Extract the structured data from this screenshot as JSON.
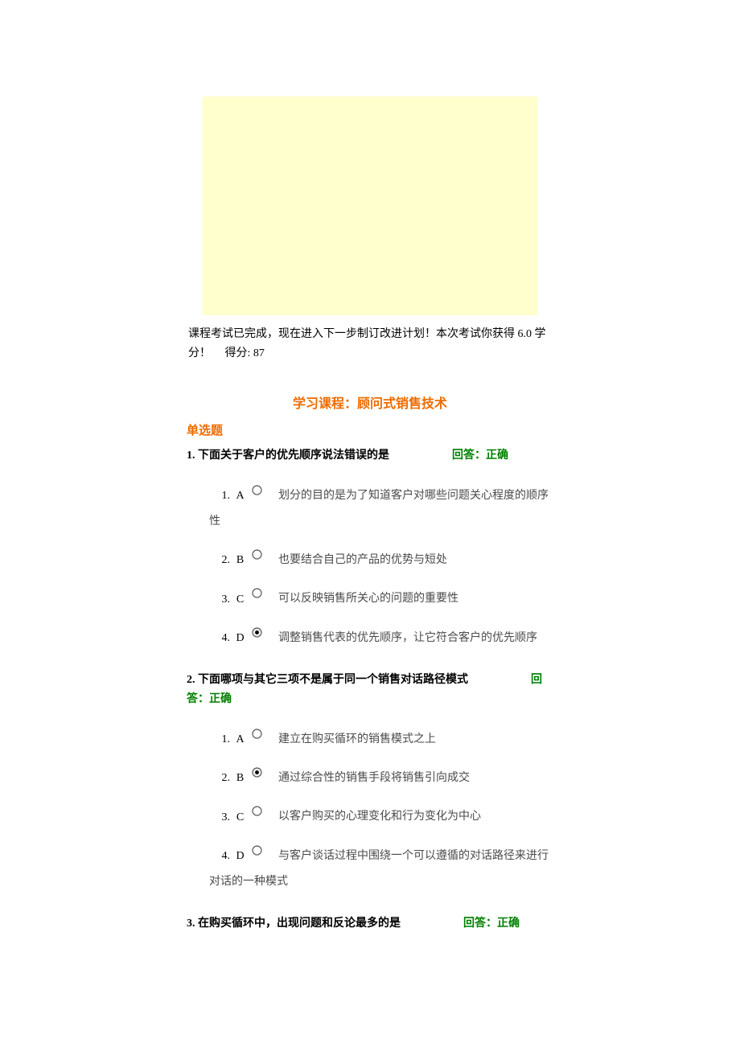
{
  "banner_bg": "#feffcc",
  "completion_text": "课程考试已完成，现在进入下一步制订改进计划！本次考试你获得 6.0 学分！　 得分: 87",
  "course_title": "学习课程：顾问式销售技术",
  "course_title_color": "#ed6c00",
  "section_label": "单选题",
  "section_label_color": "#ed6c00",
  "answer_prefix": "回答：",
  "answer_correct": "正确",
  "answer_color": "#008000",
  "option_text_color": "#4b4b4b",
  "questions": [
    {
      "number": "1.",
      "text": "下面关于客户的优先顺序说法错误的是",
      "answer_status": "正确",
      "answer_gap": "　　　",
      "options": [
        {
          "idx": "1.",
          "letter": "A",
          "selected": false,
          "text": "划分的目的是为了知道客户对哪些问题关心程度的顺序性"
        },
        {
          "idx": "2.",
          "letter": "B",
          "selected": false,
          "text": "也要结合自己的产品的优势与短处"
        },
        {
          "idx": "3.",
          "letter": "C",
          "selected": false,
          "text": "可以反映销售所关心的问题的重要性"
        },
        {
          "idx": "4.",
          "letter": "D",
          "selected": true,
          "text": "调整销售代表的优先顺序，让它符合客户的优先顺序"
        }
      ]
    },
    {
      "number": "2.",
      "text": "下面哪项与其它三项不是属于同一个销售对话路径模式",
      "answer_status": "正确",
      "answer_gap": "　　　",
      "options": [
        {
          "idx": "1.",
          "letter": "A",
          "selected": false,
          "text": "建立在购买循环的销售模式之上"
        },
        {
          "idx": "2.",
          "letter": "B",
          "selected": true,
          "text": "通过综合性的销售手段将销售引向成交"
        },
        {
          "idx": "3.",
          "letter": "C",
          "selected": false,
          "text": "以客户购买的心理变化和行为变化为中心"
        },
        {
          "idx": "4.",
          "letter": "D",
          "selected": false,
          "text": "与客户谈话过程中围绕一个可以遵循的对话路径来进行对话的一种模式"
        }
      ]
    },
    {
      "number": "3.",
      "text": "在购买循环中，出现问题和反论最多的是",
      "answer_status": "正确",
      "answer_gap": "　　　",
      "options": []
    }
  ]
}
